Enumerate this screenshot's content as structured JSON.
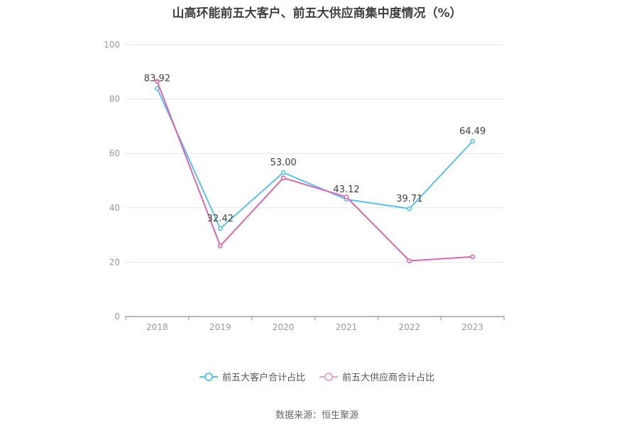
{
  "chart_data": {
    "type": "line",
    "title": "山高环能前五大客户、前五大供应商集中度情况（%）",
    "categories": [
      "2018",
      "2019",
      "2020",
      "2021",
      "2022",
      "2023"
    ],
    "ylim": [
      0,
      100
    ],
    "yticks": [
      "0",
      "20",
      "40",
      "60",
      "80",
      "100"
    ],
    "grid": true,
    "legend_position": "bottom",
    "series": [
      {
        "name": "前五大客户合计占比",
        "color": "#5bc0f0",
        "values": [
          83.92,
          32.42,
          53.0,
          43.12,
          39.71,
          64.49
        ],
        "labels": [
          "83.92",
          "32.42",
          "53.00",
          "43.12",
          "39.71",
          "64.49"
        ]
      },
      {
        "name": "前五大供应商合计占比",
        "color": "#d966b0",
        "values": [
          86.5,
          26.0,
          51.0,
          44.0,
          20.5,
          22.0
        ]
      }
    ]
  },
  "source": "数据来源：恒生聚源"
}
